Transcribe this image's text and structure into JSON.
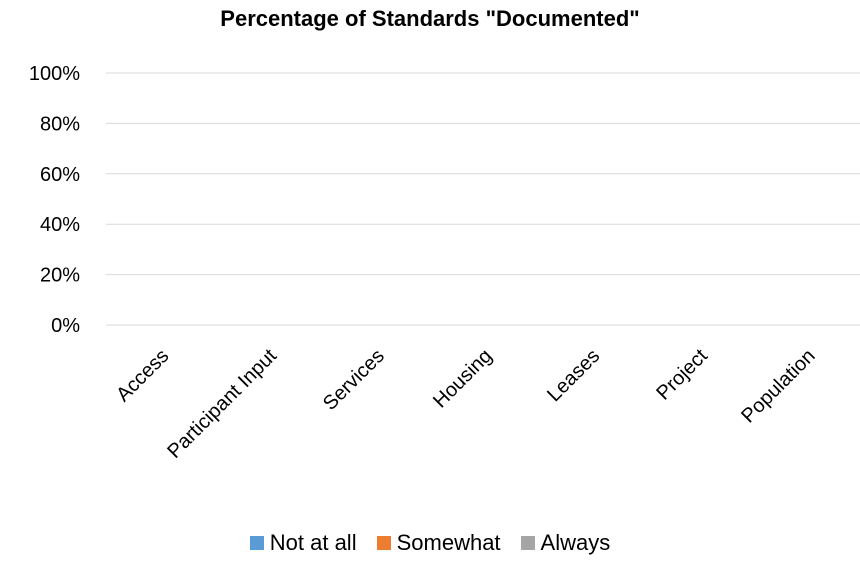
{
  "chart_data": {
    "type": "bar",
    "stacked": true,
    "percent": true,
    "title": "Percentage of Standards \"Documented\"",
    "xlabel": "",
    "ylabel": "",
    "categories": [
      "Access",
      "Participant Input",
      "Services",
      "Housing",
      "Leases",
      "Project",
      "Population"
    ],
    "y_ticks": [
      "0%",
      "20%",
      "40%",
      "60%",
      "80%",
      "100%"
    ],
    "ylim": [
      0,
      100
    ],
    "grid": true,
    "legend_position": "bottom",
    "series": [
      {
        "name": "Not at all",
        "color": "#5b9bd5",
        "values": [
          0,
          0,
          0,
          0,
          0,
          0,
          0
        ]
      },
      {
        "name": "Somewhat",
        "color": "#ed7d31",
        "values": [
          0,
          0,
          0,
          0,
          0,
          0,
          0
        ]
      },
      {
        "name": "Always",
        "color": "#a5a5a5",
        "values": [
          0,
          0,
          0,
          0,
          0,
          0,
          0
        ]
      }
    ]
  }
}
